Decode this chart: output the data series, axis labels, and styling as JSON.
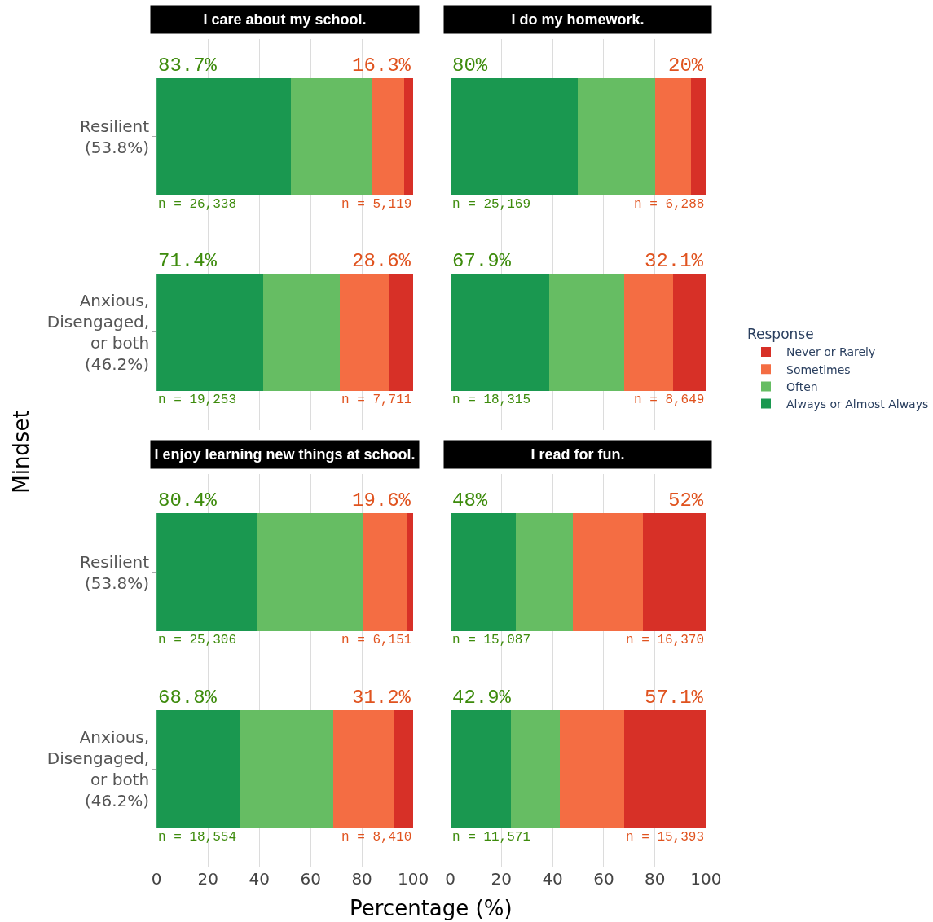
{
  "chart_data": [
    {
      "type": "bar",
      "orientation": "horizontal",
      "stacked": true,
      "title": "I care about my school.",
      "ylabel": "Mindset",
      "legend_title": "Response",
      "legend": "right",
      "grid": "x",
      "tick_labels": "y",
      "xlim": [
        0,
        100
      ],
      "xticks": [
        0,
        20,
        40,
        60,
        80,
        100
      ],
      "categories": [
        "Resilient\n(53.8%)",
        "Anxious,\nDisengaged,\nor both\n(46.2%)"
      ],
      "series": [
        {
          "name": "Always or Almost Always",
          "color": "#1a9850",
          "values": [
            52.4,
            41.6
          ]
        },
        {
          "name": "Often",
          "color": "#66bd63",
          "values": [
            31.3,
            29.8
          ]
        },
        {
          "name": "Sometimes",
          "color": "#f46d43",
          "values": [
            12.8,
            19.1
          ]
        },
        {
          "name": "Never or Rarely",
          "color": "#d73027",
          "values": [
            3.5,
            9.5
          ]
        }
      ],
      "annotations": [
        "83.7%",
        "16.3%",
        "n = 26,338",
        "n = 5,119",
        "71.4%",
        "28.6%",
        "n = 19,253",
        "n = 7,711"
      ]
    },
    {
      "type": "bar",
      "orientation": "horizontal",
      "stacked": true,
      "title": "I do my homework.",
      "grid": "x",
      "tick_labels": false,
      "xlim": [
        0,
        100
      ],
      "xticks": [
        0,
        20,
        40,
        60,
        80,
        100
      ],
      "categories": [
        "Resilient\n(53.8%)",
        "Anxious,\nDisengaged,\nor both\n(46.2%)"
      ],
      "series": [
        {
          "name": "Always or Almost Always",
          "color": "#1a9850",
          "values": [
            50.0,
            38.6
          ]
        },
        {
          "name": "Often",
          "color": "#66bd63",
          "values": [
            30.0,
            29.3
          ]
        },
        {
          "name": "Sometimes",
          "color": "#f46d43",
          "values": [
            14.0,
            19.1
          ]
        },
        {
          "name": "Never or Rarely",
          "color": "#d73027",
          "values": [
            6.0,
            13.0
          ]
        }
      ],
      "annotations": [
        "80%",
        "20%",
        "n = 25,169",
        "n = 6,288",
        "67.9%",
        "32.1%",
        "n = 18,315",
        "n = 8,649"
      ]
    },
    {
      "type": "bar",
      "orientation": "horizontal",
      "stacked": true,
      "title": "I enjoy learning new things at school.",
      "xlabel": "Percentage (%)",
      "grid": "x",
      "xlim": [
        0,
        100
      ],
      "xticks": [
        0,
        20,
        40,
        60,
        80,
        100
      ],
      "categories": [
        "Resilient\n(53.8%)",
        "Anxious,\nDisengaged,\nor both\n(46.2%)"
      ],
      "series": [
        {
          "name": "Always or Almost Always",
          "color": "#1a9850",
          "values": [
            39.4,
            32.8
          ]
        },
        {
          "name": "Often",
          "color": "#66bd63",
          "values": [
            41.0,
            36.0
          ]
        },
        {
          "name": "Sometimes",
          "color": "#f46d43",
          "values": [
            17.4,
            23.9
          ]
        },
        {
          "name": "Never or Rarely",
          "color": "#d73027",
          "values": [
            2.2,
            7.3
          ]
        }
      ],
      "annotations": [
        "80.4%",
        "19.6%",
        "n = 25,306",
        "n = 6,151",
        "68.8%",
        "31.2%",
        "n = 18,554",
        "n = 8,410"
      ]
    },
    {
      "type": "bar",
      "orientation": "horizontal",
      "stacked": true,
      "title": "I read for fun.",
      "grid": "x",
      "tick_labels": "x",
      "xlim": [
        0,
        100
      ],
      "xticks": [
        0,
        20,
        40,
        60,
        80,
        100
      ],
      "categories": [
        "Resilient\n(53.8%)",
        "Anxious,\nDisengaged,\nor both\n(46.2%)"
      ],
      "series": [
        {
          "name": "Always or Almost Always",
          "color": "#1a9850",
          "values": [
            25.6,
            23.7
          ]
        },
        {
          "name": "Often",
          "color": "#66bd63",
          "values": [
            22.4,
            19.2
          ]
        },
        {
          "name": "Sometimes",
          "color": "#f46d43",
          "values": [
            27.3,
            25.1
          ]
        },
        {
          "name": "Never or Rarely",
          "color": "#d73027",
          "values": [
            24.7,
            32.0
          ]
        }
      ],
      "annotations": [
        "48%",
        "52%",
        "n = 15,087",
        "n = 16,370",
        "42.9%",
        "57.1%",
        "n = 11,571",
        "n = 15,393"
      ]
    }
  ]
}
